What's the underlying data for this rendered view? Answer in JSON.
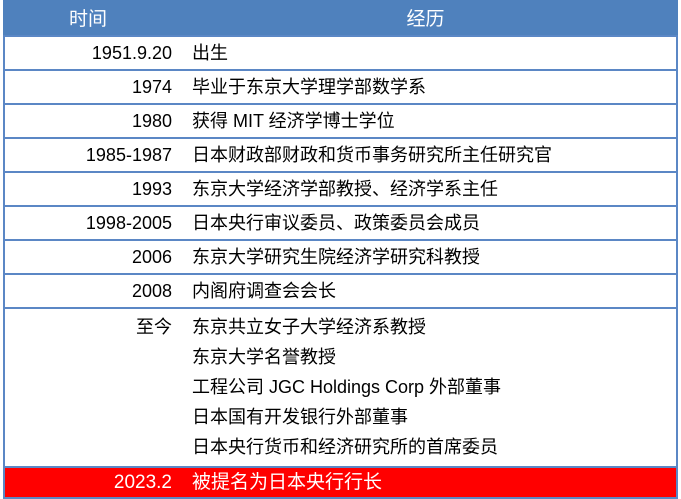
{
  "table": {
    "title": "resume-timeline-table",
    "colors": {
      "header_bg": "#4F81BD",
      "border": "#5B87C5",
      "highlight_bg": "#FF0000",
      "highlight_text": "#FFFFFF"
    },
    "header": {
      "time": "时间",
      "experience": "经历"
    },
    "rows": [
      {
        "time": "1951.9.20",
        "lines": [
          "出生"
        ]
      },
      {
        "time": "1974",
        "lines": [
          "毕业于东京大学理学部数学系"
        ]
      },
      {
        "time": "1980",
        "lines": [
          "获得 MIT 经济学博士学位"
        ]
      },
      {
        "time": "1985-1987",
        "lines": [
          "日本财政部财政和货币事务研究所主任研究官"
        ]
      },
      {
        "time": "1993",
        "lines": [
          "东京大学经济学部教授、经济学系主任"
        ]
      },
      {
        "time": "1998-2005",
        "lines": [
          "日本央行审议委员、政策委员会成员"
        ]
      },
      {
        "time": "2006",
        "lines": [
          "东京大学研究生院经济学研究科教授"
        ]
      },
      {
        "time": "2008",
        "lines": [
          "内阁府调查会会长"
        ]
      },
      {
        "time": "至今",
        "lines": [
          "东京共立女子大学经济系教授",
          "东京大学名誉教授",
          "工程公司 JGC Holdings Corp 外部董事",
          "日本国有开发银行外部董事",
          "日本央行货币和经济研究所的首席委员"
        ]
      },
      {
        "time": "2023.2",
        "lines": [
          "被提名为日本央行行长"
        ],
        "highlight": true
      }
    ]
  }
}
